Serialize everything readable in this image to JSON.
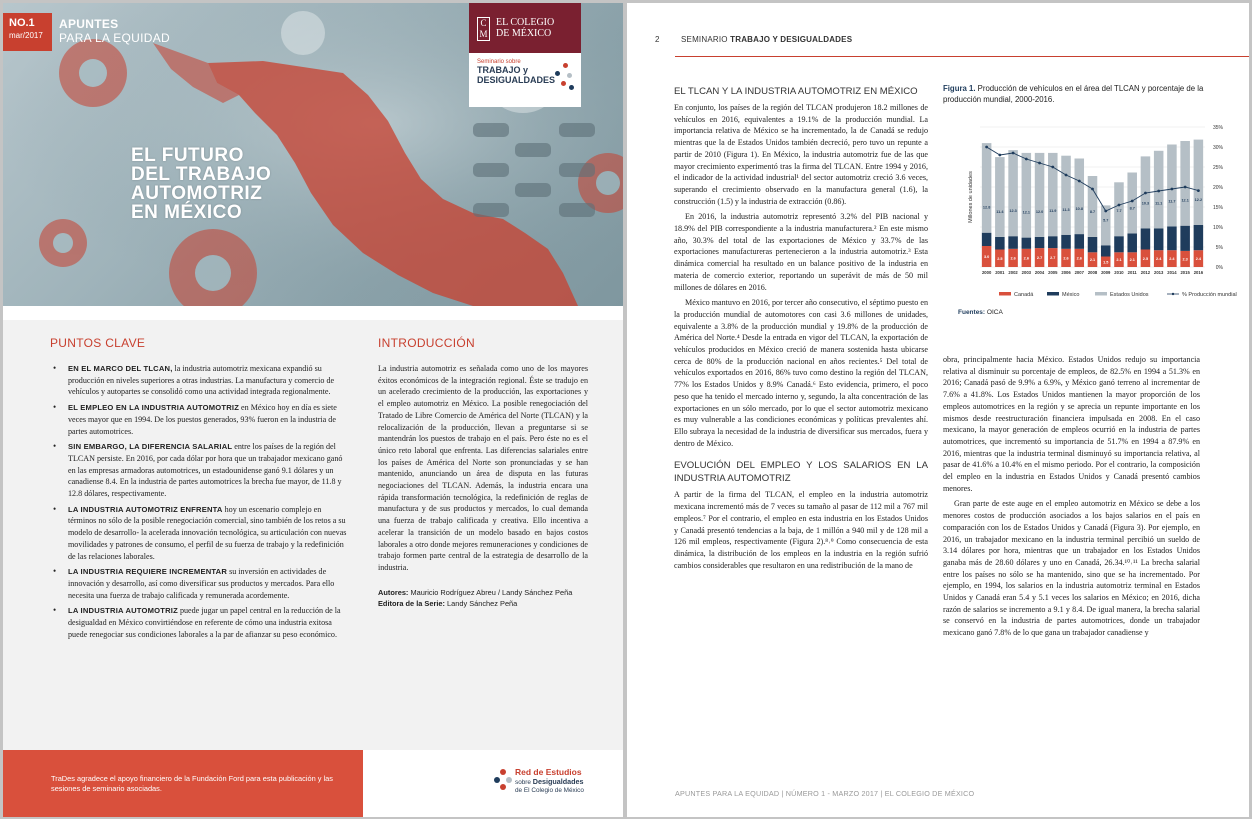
{
  "left": {
    "issue": {
      "number": "NO.1",
      "date": "mar/2017"
    },
    "series": {
      "line1": "APUNTES",
      "line2": "PARA LA EQUIDAD"
    },
    "colmex": {
      "mark": "C M",
      "name1": "EL COLEGIO",
      "name2": "DE MÉXICO"
    },
    "seminar": {
      "small": "Seminario sobre",
      "line1": "TRABAJO y",
      "line2": "DESIGUALDADES"
    },
    "title": [
      "EL FUTURO",
      "DEL TRABAJO",
      "AUTOMOTRIZ",
      "EN MÉXICO"
    ],
    "puntos_clave": {
      "heading": "PUNTOS CLAVE",
      "items": [
        {
          "lead": "EN EL MARCO DEL TLCAN,",
          "text": " la industria automotriz mexicana expandió su producción en niveles superiores a otras industrias. La manufactura y comercio de vehículos y autopartes se consolidó como una actividad integrada regionalmente."
        },
        {
          "lead": "EL EMPLEO EN LA INDUSTRIA AUTOMOTRIZ",
          "text": " en México hoy en día es siete veces mayor que en 1994. De los puestos generados, 93% fueron en la industria de partes automotrices."
        },
        {
          "lead": "SIN EMBARGO, LA DIFERENCIA SALARIAL",
          "text": " entre los países de la región del TLCAN persiste. En 2016, por cada dólar por hora que un trabajador mexicano ganó en las empresas armadoras automotrices, un estadounidense ganó 9.1 dólares y un canadiense 8.4. En la industria de partes automotrices la brecha fue mayor, de 11.8 y 12.8 dólares, respectivamente."
        },
        {
          "lead": "LA INDUSTRIA AUTOMOTRIZ ENFRENTA",
          "text": " hoy un escenario complejo en términos no sólo de la posible renegociación comercial, sino también de los retos a su modelo de desarrollo- la acelerada innovación tecnológica, su articulación con nuevas movilidades y patrones de consumo, el perfil de su fuerza de trabajo y la redefinición de las relaciones laborales."
        },
        {
          "lead": "LA INDUSTRIA REQUIERE INCREMENTAR",
          "text": " su inversión en actividades de innovación y desarrollo, así como diversificar sus productos y mercados. Para ello necesita una fuerza de trabajo calificada y remunerada acordemente."
        },
        {
          "lead": "LA INDUSTRIA AUTOMOTRIZ",
          "text": " puede jugar un papel central en la reducción de la desigualdad en México convirtiéndose en referente de cómo una industria exitosa puede renegociar sus condiciones laborales a la par de afianzar su peso económico."
        }
      ]
    },
    "introduccion": {
      "heading": "INTRODUCCIÓN",
      "text": "La industria automotriz es señalada como uno de los mayores éxitos económicos de la integración regional. Éste se tradujo en un acelerado crecimiento de la producción, las exportaciones y el empleo automotriz en México. La posible renegociación del Tratado de Libre Comercio de América del Norte (TLCAN) y la relocalización de la producción, llevan a preguntarse si se mantendrán los puestos de trabajo en el país. Pero éste no es el único reto laboral que enfrenta. Las diferencias salariales entre los países de América del Norte son pronunciadas y se han mantenido, anunciando un área de disputa en las futuras negociaciones del TLCAN. Además, la industria encara una rápida transformación tecnológica, la redefinición de reglas de manufactura y de sus productos y mercados, lo cual demanda una fuerza de trabajo calificada y creativa. Ello incentiva a acelerar la transición de un modelo basado en bajos costos laborales a otro donde mejores remuneraciones y condiciones de trabajo formen parte central de la estrategia de desarrollo de la industria.",
      "authors_label": "Autores:",
      "authors": " Mauricio Rodríguez Abreu / Landy Sánchez Peña",
      "editor_label": "Editora de la Serie:",
      "editor": " Landy Sánchez Peña"
    },
    "footer": {
      "thanks": "TraDes agradece el apoyo financiero de la Fundación Ford para esta publicación y las sesiones de seminario asociadas.",
      "red_title": "Red de Estudios",
      "red_sub1": "sobre ",
      "red_sub1b": "Desigualdades",
      "red_sub2": "de El Colegio de México"
    }
  },
  "right": {
    "page_number": "2",
    "running_head_prefix": "SEMINARIO ",
    "running_head_bold": "TRABAJO Y DESIGUALDADES",
    "sec1_title": "EL TLCAN Y LA INDUSTRIA AUTOMOTRIZ EN MÉXICO",
    "sec1_p1": "En conjunto, los países de la región del TLCAN produjeron 18.2 millones de vehículos en 2016, equivalentes a 19.1% de la producción mundial. La importancia relativa de México se ha incrementado, la de Canadá se redujo mientras que la de Estados Unidos también decreció, pero tuvo un repunte a partir de 2010 (Figura 1). En México, la industria automotriz fue de las que mayor crecimiento experimentó tras la firma del TLCAN. Entre 1994 y 2016, el indicador de la actividad industrial¹ del sector automotriz creció 3.6 veces, superando el crecimiento observado en la manufactura general (1.6), la construcción (1.5) y la industria de extracción (0.86).",
    "sec1_p2": "En 2016, la industria automotriz representó 3.2% del PIB nacional y 18.9% del PIB correspondiente a la industria manufacturera.² En este mismo año, 30.3% del total de las exportaciones de México y 33.7% de las exportaciones manufactureras pertenecieron a la industria automotriz.³ Esta dinámica comercial ha resultado en un balance positivo de la industria en materia de comercio exterior, reportando un superávit de más de 50 mil millones de dólares en 2016.",
    "sec1_p3": "México mantuvo en 2016, por tercer año consecutivo, el séptimo puesto en la producción mundial de automotores con casi 3.6 millones de unidades, equivalente a 3.8% de la producción mundial y 19.8% de la producción de América del Norte.⁴ Desde la entrada en vigor del TLCAN, la exportación de vehículos producidos en México creció de manera sostenida hasta ubicarse cerca de 80% de la producción nacional en años recientes.⁵ Del total de vehículos exportados en 2016, 86% tuvo como destino la región del TLCAN, 77% los Estados Unidos y 8.9% Canadá.⁶ Esto evidencia, primero, el poco peso que ha tenido el mercado interno y, segundo, la alta concentración de las exportaciones en un sólo mercado, por lo que el sector automotriz mexicano es muy vulnerable a las condiciones económicas y políticas prevalentes ahí. Ello subraya la necesidad de la industria de diversificar sus mercados, fuera y dentro de México.",
    "sec2_title": "EVOLUCIÓN DEL EMPLEO Y LOS SALARIOS EN LA INDUSTRIA AUTOMOTRIZ",
    "sec2_p1": "A partir de la firma del TLCAN, el empleo en la industria automotriz mexicana incrementó más de 7 veces su tamaño al pasar de 112 mil a 767 mil empleos.⁷ Por el contrario, el empleo en esta industria en los Estados Unidos y Canadá presentó tendencias a la baja, de 1 millón a 940 mil y de 128 mil a 126 mil empleos, respectivamente (Figura 2).⁸˒⁹ Como consecuencia de esta dinámica, la distribución de los empleos en la industria en la región sufrió cambios considerables que resultaron  en una redistribución de la mano de",
    "col2_p1": "obra, principalmente hacia México. Estados Unidos redujo su importancia relativa al disminuir su porcentaje de empleos, de 82.5% en 1994 a 51.3% en 2016; Canadá pasó de 9.9% a 6.9%, y México ganó terreno al incrementar de 7.6% a 41.8%. Los Estados Unidos mantienen la mayor proporción de los empleos automotrices en la región y se aprecia un repunte importante en los mismos desde reestructuración financiera impulsada en 2008. En el caso mexicano, la mayor generación de empleos ocurrió en la industria de partes automotrices, que incrementó su importancia de 51.7% en 1994 a 87.9% en 2016, mientras que la industria terminal disminuyó su importancia relativa, al pasar de 41.6% a 10.4% en el mismo periodo. Por el contrario, la composición del empleo en la industria en Estados Unidos y Canadá presentó cambios menores.",
    "col2_p2": "Gran parte de este auge en el empleo automotriz en México se debe a los menores costos de producción asociados a los bajos salarios en el país en comparación con los de Estados Unidos y Canadá (Figura 3). Por ejemplo, en 2016, un trabajador mexicano en la industria terminal percibió un sueldo de 3.14 dólares por hora, mientras que un trabajador en los Estados Unidos ganaba más de 28.60 dólares y uno en Canadá, 26.34.¹⁰˒¹¹ La brecha salarial entre los países no sólo se ha mantenido, sino que se ha incrementado. Por ejemplo, en 1994, los salarios en la industria automotriz terminal en Estados Unidos y Canadá eran 5.4 y 5.1 veces los salarios en México; en 2016, dicha razón de salarios se incremento a 9.1 y 8.4. De igual manera, la brecha salarial se conservó en la industria de partes automotrices, donde un trabajador mexicano ganó 7.8% de lo que gana un trabajador canadiense y",
    "figure_label": "Figura 1.",
    "figure_caption": " Producción de vehículos en el área del TLCAN y porcentaje de la producción mundial, 2000-2016.",
    "fuentes_label": "Fuentes:",
    "fuentes": " OICA",
    "footer": "APUNTES PARA LA EQUIDAD  |  NÚMERO 1 - MARZO 2017  |  EL COLEGIO DE MÉXICO"
  },
  "chart_data": {
    "type": "bar",
    "stacked": true,
    "title": "",
    "xlabel": "",
    "ylabel": "Millones de unidades",
    "categories": [
      "2000",
      "2001",
      "2002",
      "2003",
      "2004",
      "2005",
      "2006",
      "2007",
      "2008",
      "2009",
      "2010",
      "2011",
      "2012",
      "2013",
      "2014",
      "2015",
      "2016"
    ],
    "series": [
      {
        "name": "Canadá",
        "color": "#d9503c",
        "values": [
          3.0,
          2.5,
          2.6,
          2.6,
          2.7,
          2.7,
          2.6,
          2.6,
          2.1,
          1.5,
          2.1,
          2.1,
          2.5,
          2.4,
          2.4,
          2.3,
          2.4
        ]
      },
      {
        "name": "México",
        "color": "#1f3c5c",
        "values": [
          1.9,
          1.8,
          1.8,
          1.6,
          1.6,
          1.7,
          2.0,
          2.1,
          2.2,
          1.6,
          2.3,
          2.7,
          3.0,
          3.1,
          3.4,
          3.6,
          3.6
        ]
      },
      {
        "name": "Estados Unidos",
        "color": "#b5bfc6",
        "values": [
          12.8,
          11.4,
          12.3,
          12.1,
          12.0,
          11.9,
          11.3,
          10.8,
          8.7,
          5.7,
          7.7,
          8.7,
          10.3,
          11.1,
          11.7,
          12.1,
          12.2
        ]
      }
    ],
    "line": {
      "name": "% Producción mundial",
      "color": "#1f3c5c",
      "values": [
        30.0,
        28.0,
        28.5,
        27.0,
        26.0,
        25.0,
        23.0,
        21.5,
        19.5,
        14.0,
        15.5,
        16.5,
        18.5,
        19.0,
        19.5,
        20.0,
        19.1
      ]
    },
    "ylim_left": [
      0,
      20
    ],
    "ylim_right": [
      0,
      35
    ],
    "right_ticks": [
      "0%",
      "5%",
      "10%",
      "15%",
      "20%",
      "25%",
      "30%",
      "35%"
    ],
    "grid": true,
    "legend": "bottom"
  }
}
